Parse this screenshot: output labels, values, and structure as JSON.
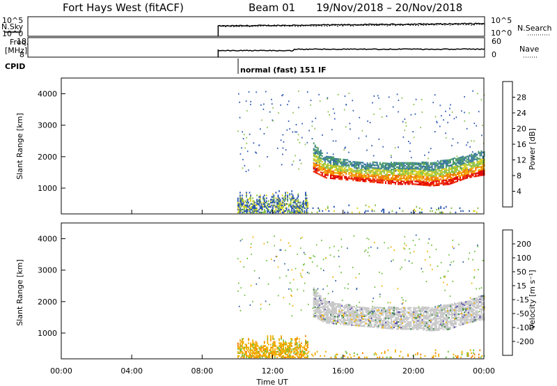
{
  "header": {
    "station": "Fort Hays West (fitACF)",
    "beam": "Beam 01",
    "dates": "19/Nov/2018 – 20/Nov/2018"
  },
  "top_panels": {
    "nsky_label": "N.Sky",
    "nsky_ticks": [
      "10^5",
      "10^0"
    ],
    "nsearch_label": "N.Search",
    "nsearch_ticks": [
      "10^5",
      "10^0"
    ],
    "freq_label_1": "Freq.",
    "freq_label_2": "[MHz]",
    "freq_ticks": [
      "18",
      "8"
    ],
    "nave_label": "Nave",
    "nave_ticks": [
      "60",
      "0"
    ],
    "cpid_label": "CPID",
    "cpid_text": "normal (fast) 151 IF"
  },
  "chart_data": [
    {
      "type": "heatmap",
      "panel": "power",
      "ylabel": "Slant Range [km]",
      "yticks": [
        "4000",
        "3000",
        "2000",
        "1000"
      ],
      "ylim": [
        180,
        4500
      ],
      "xlim": [
        0,
        24
      ],
      "colorbar_label": "Power [dB]",
      "colorbar_ticks": [
        "28",
        "24",
        "20",
        "16",
        "12",
        "8",
        "4"
      ],
      "colorbar_colors": [
        "#0000ff",
        "#2a55b0",
        "#3a7a9a",
        "#4a9a6a",
        "#8ac04a",
        "#d8d020",
        "#f0a800",
        "#f07000",
        "#f03000",
        "#e00000"
      ],
      "data_start_hour": 10,
      "main_band": [
        {
          "hour": 14.3,
          "low": 1500,
          "high": 2400
        },
        {
          "hour": 15,
          "low": 1300,
          "high": 2000
        },
        {
          "hour": 16,
          "low": 1250,
          "high": 1900
        },
        {
          "hour": 17,
          "low": 1200,
          "high": 1800
        },
        {
          "hour": 18,
          "low": 1150,
          "high": 1800
        },
        {
          "hour": 19,
          "low": 1100,
          "high": 1800
        },
        {
          "hour": 20,
          "low": 1100,
          "high": 1800
        },
        {
          "hour": 21,
          "low": 1050,
          "high": 1800
        },
        {
          "hour": 22,
          "low": 1100,
          "high": 1900
        },
        {
          "hour": 23,
          "low": 1300,
          "high": 2000
        },
        {
          "hour": 24,
          "low": 1400,
          "high": 2200
        }
      ]
    },
    {
      "type": "heatmap",
      "panel": "velocity",
      "ylabel": "Slant Range [km]",
      "yticks": [
        "4000",
        "3000",
        "2000",
        "1000"
      ],
      "ylim": [
        180,
        4500
      ],
      "xlim": [
        0,
        24
      ],
      "colorbar_label": "Velocity [m s⁻¹]",
      "colorbar_ticks": [
        "200",
        "100",
        "50",
        "15",
        "-15",
        "-50",
        "-100",
        "-200"
      ],
      "colorbar_colors": [
        "#2040c0",
        "#3060a0",
        "#3a8a4a",
        "#70c040",
        "#c8c8c8",
        "#c8c8c8",
        "#f0b000",
        "#f08000",
        "#f04000",
        "#e00000"
      ],
      "data_start_hour": 10,
      "main_band": [
        {
          "hour": 14.3,
          "low": 1500,
          "high": 2400
        },
        {
          "hour": 15,
          "low": 1300,
          "high": 2000
        },
        {
          "hour": 16,
          "low": 1250,
          "high": 1900
        },
        {
          "hour": 17,
          "low": 1200,
          "high": 1800
        },
        {
          "hour": 18,
          "low": 1150,
          "high": 1800
        },
        {
          "hour": 19,
          "low": 1100,
          "high": 1800
        },
        {
          "hour": 20,
          "low": 1100,
          "high": 1800
        },
        {
          "hour": 21,
          "low": 1050,
          "high": 1800
        },
        {
          "hour": 22,
          "low": 1100,
          "high": 1900
        },
        {
          "hour": 23,
          "low": 1300,
          "high": 2000
        },
        {
          "hour": 24,
          "low": 1400,
          "high": 2200
        }
      ]
    }
  ],
  "x_axis": {
    "label": "Time UT",
    "ticks": [
      "00:00",
      "04:00",
      "08:00",
      "12:00",
      "16:00",
      "20:00",
      "00:00"
    ]
  }
}
